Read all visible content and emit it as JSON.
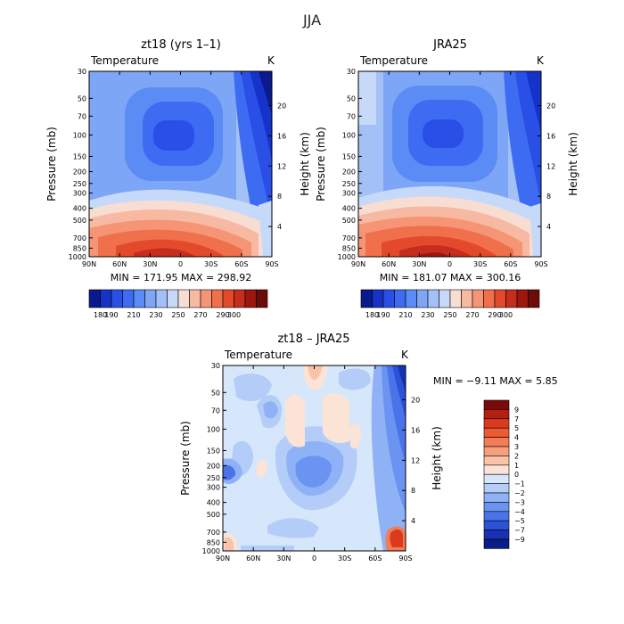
{
  "page": {
    "season_title": "JJA"
  },
  "panels": [
    {
      "id": "model",
      "title": "zt18 (yrs 1–1)",
      "variable": "Temperature",
      "units": "K",
      "ylabel_left": "Pressure (mb)",
      "ylabel_right": "Height (km)",
      "min_max": "MIN = 171.95    MAX = 298.92"
    },
    {
      "id": "obs",
      "title": "JRA25",
      "variable": "Temperature",
      "units": "K",
      "ylabel_left": "Pressure (mb)",
      "ylabel_right": "Height (km)",
      "min_max": "MIN = 181.07    MAX = 300.16"
    },
    {
      "id": "diff",
      "title": "zt18 – JRA25",
      "variable": "Temperature",
      "units": "K",
      "ylabel_left": "Pressure (mb)",
      "ylabel_right": "Height (km)",
      "min_max": "MIN =   −9.11    MAX =    5.85"
    }
  ],
  "axes": {
    "lat_ticks": [
      "90N",
      "60N",
      "30N",
      "0",
      "30S",
      "60S",
      "90S"
    ],
    "pressure_ticks": [
      "30",
      "50",
      "70",
      "100",
      "150",
      "200",
      "250",
      "300",
      "400",
      "500",
      "700",
      "850",
      "1000"
    ],
    "height_ticks_top": [
      "20",
      "16",
      "12",
      "8",
      "4"
    ],
    "height_ticks_diff": [
      "20",
      "16",
      "12",
      "8",
      "4"
    ]
  },
  "colorbars": {
    "abs_labels": [
      "180",
      "190",
      "200",
      "210",
      "220",
      "230",
      "240",
      "250",
      "260",
      "270",
      "280",
      "290",
      "300"
    ],
    "abs_colors": [
      "#0a1a8c",
      "#1533c8",
      "#2a4fe6",
      "#3d6cf2",
      "#5b8bf5",
      "#7ea6f6",
      "#a3c0f7",
      "#c7d9f9",
      "#f8ded2",
      "#f7b9a2",
      "#f69575",
      "#f1704c",
      "#e34a2c",
      "#c62d1c",
      "#9b1710",
      "#6e0a0a"
    ],
    "diff_labels": [
      "9",
      "7",
      "5",
      "4",
      "3",
      "2",
      "1",
      "0",
      "−1",
      "−2",
      "−3",
      "−4",
      "−5",
      "−7",
      "−9"
    ],
    "diff_colors": [
      "#7a0a0a",
      "#b3200f",
      "#dc3a1e",
      "#f05a33",
      "#f47d55",
      "#f6a07e",
      "#f8c3a9",
      "#fbe3d6",
      "#d6e6fb",
      "#b4cdf8",
      "#8fb2f6",
      "#6b93f2",
      "#4a73ea",
      "#2c52d8",
      "#1733b5",
      "#0a1c88"
    ]
  },
  "chart_data": [
    {
      "type": "heatmap",
      "title": "zt18 (yrs 1–1)",
      "variable": "Temperature",
      "units": "K",
      "xlabel": "",
      "ylabel": "Pressure (mb)",
      "y2label": "Height (km)",
      "x": [
        "90N",
        "60N",
        "30N",
        "0",
        "30S",
        "60S",
        "90S"
      ],
      "y_pressure_mb": [
        30,
        50,
        70,
        100,
        150,
        200,
        250,
        300,
        400,
        500,
        700,
        850,
        1000
      ],
      "min": 171.95,
      "max": 298.92,
      "levels": [
        180,
        190,
        200,
        210,
        220,
        230,
        240,
        250,
        260,
        270,
        280,
        290,
        300
      ]
    },
    {
      "type": "heatmap",
      "title": "JRA25",
      "variable": "Temperature",
      "units": "K",
      "xlabel": "",
      "ylabel": "Pressure (mb)",
      "y2label": "Height (km)",
      "x": [
        "90N",
        "60N",
        "30N",
        "0",
        "30S",
        "60S",
        "90S"
      ],
      "y_pressure_mb": [
        30,
        50,
        70,
        100,
        150,
        200,
        250,
        300,
        400,
        500,
        700,
        850,
        1000
      ],
      "min": 181.07,
      "max": 300.16,
      "levels": [
        180,
        190,
        200,
        210,
        220,
        230,
        240,
        250,
        260,
        270,
        280,
        290,
        300
      ]
    },
    {
      "type": "heatmap",
      "title": "zt18 – JRA25",
      "variable": "Temperature",
      "units": "K",
      "xlabel": "",
      "ylabel": "Pressure (mb)",
      "y2label": "Height (km)",
      "x": [
        "90N",
        "60N",
        "30N",
        "0",
        "30S",
        "60S",
        "90S"
      ],
      "y_pressure_mb": [
        30,
        50,
        70,
        100,
        150,
        200,
        250,
        300,
        400,
        500,
        700,
        850,
        1000
      ],
      "min": -9.11,
      "max": 5.85,
      "levels": [
        -9,
        -7,
        -5,
        -4,
        -3,
        -2,
        -1,
        0,
        1,
        2,
        3,
        4,
        5,
        7,
        9
      ]
    }
  ]
}
